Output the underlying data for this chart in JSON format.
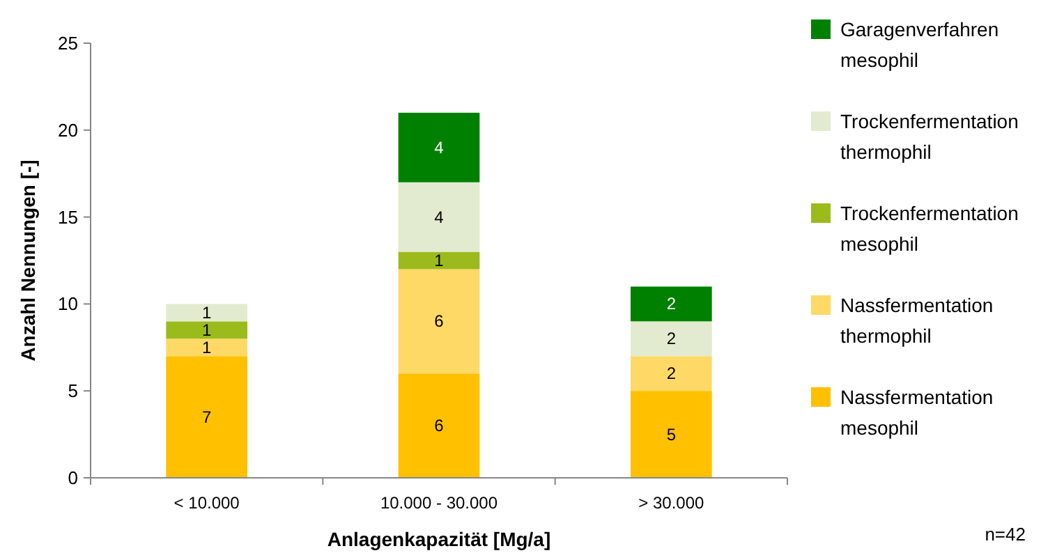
{
  "chart_data": {
    "type": "bar",
    "stacked": true,
    "xlabel": "Anlagenkapazität [Mg/a]",
    "ylabel": "Anzahl Nennungen [-]",
    "categories": [
      "< 10.000",
      "10.000 - 30.000",
      "> 30.000"
    ],
    "series": [
      {
        "name": "Nassfermentation mesophil",
        "color": "#ffc000",
        "values": [
          7,
          6,
          5
        ]
      },
      {
        "name": "Nassfermentation thermophil",
        "color": "#ffd966",
        "values": [
          1,
          6,
          2
        ]
      },
      {
        "name": "Trockenfermentation mesophil",
        "color": "#9bbb1c",
        "values": [
          1,
          1,
          null
        ]
      },
      {
        "name": "Trockenfermentation thermophil",
        "color": "#e2ebcf",
        "values": [
          1,
          4,
          2
        ]
      },
      {
        "name": "Garagenverfahren mesophil",
        "color": "#008000",
        "values": [
          null,
          4,
          2
        ]
      }
    ],
    "ylim": [
      0,
      25
    ],
    "yticks": [
      0,
      5,
      10,
      15,
      20,
      25
    ],
    "data_labels": true,
    "legend": "right",
    "grid": false,
    "annotations": [
      "n=42"
    ]
  }
}
